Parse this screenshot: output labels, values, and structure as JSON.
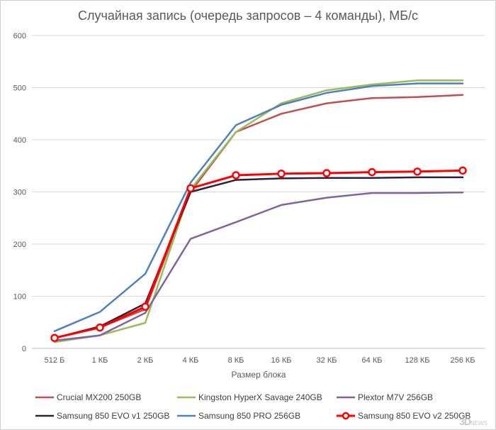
{
  "chart_data": {
    "type": "line",
    "title": "Случайная запись (очередь запросов – 4 команды), МБ/с",
    "xlabel": "Размер блока",
    "ylabel": "",
    "categories": [
      "512 Б",
      "1 КБ",
      "2 КБ",
      "4 КБ",
      "8 КБ",
      "16 КБ",
      "32 КБ",
      "64 КБ",
      "128 КБ",
      "256 КБ"
    ],
    "ylim": [
      0,
      600
    ],
    "yticks": [
      0,
      100,
      200,
      300,
      400,
      500,
      600
    ],
    "grid": true,
    "legend_position": "bottom",
    "series": [
      {
        "name": "Crucial MX200 250GB",
        "color": "#c0504d",
        "markers": false,
        "values": [
          20,
          40,
          75,
          300,
          415,
          450,
          470,
          480,
          482,
          486
        ]
      },
      {
        "name": "Kingston HyperX Savage 240GB",
        "color": "#9bbb59",
        "markers": false,
        "values": [
          12,
          25,
          49,
          305,
          415,
          470,
          495,
          506,
          514,
          514
        ]
      },
      {
        "name": "Plextor M7V 256GB",
        "color": "#8064a2",
        "markers": false,
        "values": [
          15,
          25,
          68,
          210,
          242,
          275,
          289,
          298,
          298,
          299
        ]
      },
      {
        "name": "Samsung 850 EVO v1 250GB",
        "color": "#2f2138",
        "markers": false,
        "values": [
          20,
          42,
          86,
          300,
          323,
          326,
          327,
          327,
          328,
          328
        ]
      },
      {
        "name": "Samsung 850 PRO 256GB",
        "color": "#4f81bd",
        "markers": false,
        "values": [
          33,
          70,
          143,
          318,
          428,
          467,
          490,
          503,
          508,
          508
        ]
      },
      {
        "name": "Samsung 850 EVO v2 250GB",
        "color": "#ff0000",
        "markers": true,
        "values": [
          20,
          40,
          80,
          307,
          332,
          335,
          336,
          338,
          339,
          341
        ]
      }
    ]
  },
  "watermark": {
    "main": "3D",
    "sub": "NEWS"
  }
}
